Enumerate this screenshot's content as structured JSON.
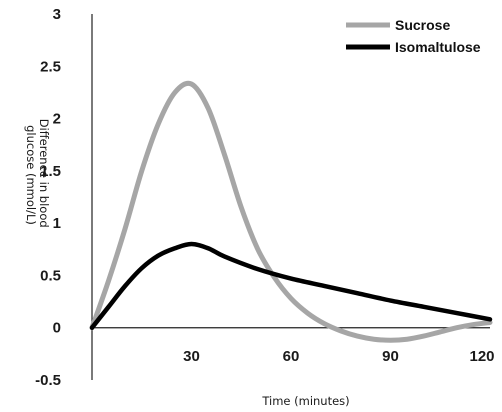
{
  "chart_data": {
    "type": "line",
    "ylabel": "Difference in blood glucose (mmol/L)",
    "ylabel_lines": [
      "Difference in blood",
      "glucose (mmol/L)"
    ],
    "xlabel": "Time (minutes)",
    "xlim": [
      0,
      120
    ],
    "ylim": [
      -0.5,
      3
    ],
    "x_ticks": [
      30,
      60,
      90,
      120
    ],
    "x_tick_labels": [
      "30",
      "60",
      "90",
      "120"
    ],
    "y_ticks": [
      -0.5,
      0,
      0.5,
      1,
      1.5,
      2,
      2.5,
      3
    ],
    "y_tick_labels": [
      "-0.5",
      "0",
      "0.5",
      "1",
      "1.5",
      "2",
      "2.5",
      "3"
    ],
    "grid": false,
    "legend_position": "top-right",
    "series": [
      {
        "name": "Sucrose",
        "color": "#a6a6a6",
        "x": [
          0,
          5,
          10,
          15,
          20,
          25,
          30,
          35,
          40,
          45,
          50,
          55,
          60,
          65,
          70,
          75,
          80,
          85,
          90,
          95,
          100,
          105,
          110,
          115,
          120
        ],
        "y": [
          0,
          0.45,
          0.95,
          1.5,
          1.95,
          2.25,
          2.33,
          2.1,
          1.65,
          1.15,
          0.75,
          0.48,
          0.28,
          0.14,
          0.04,
          -0.03,
          -0.08,
          -0.11,
          -0.12,
          -0.11,
          -0.08,
          -0.04,
          0.0,
          0.03,
          0.05
        ]
      },
      {
        "name": "Isomaltulose",
        "color": "#000000",
        "x": [
          0,
          5,
          10,
          15,
          20,
          25,
          30,
          35,
          40,
          50,
          60,
          70,
          80,
          90,
          100,
          110,
          120
        ],
        "y": [
          0,
          0.2,
          0.4,
          0.57,
          0.69,
          0.76,
          0.8,
          0.76,
          0.68,
          0.56,
          0.47,
          0.4,
          0.33,
          0.26,
          0.2,
          0.14,
          0.08
        ]
      }
    ]
  }
}
